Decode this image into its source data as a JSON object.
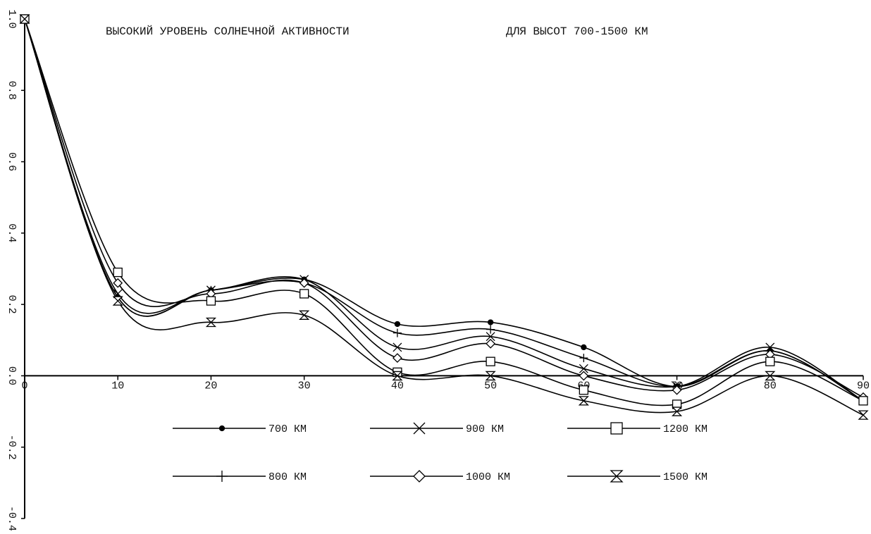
{
  "chart_data": {
    "type": "line",
    "title": "ВЫСОКИЙ УРОВЕНЬ СОЛНЕЧНОЙ АКТИВНОСТИ",
    "subtitle": "ДЛЯ ВЫСОТ 700-1500 КМ",
    "x": [
      0,
      10,
      20,
      30,
      40,
      50,
      60,
      70,
      80,
      90
    ],
    "series": [
      {
        "name": "700 КМ",
        "marker": "dot",
        "color": "#000000",
        "values": [
          1.0,
          0.22,
          0.24,
          0.27,
          0.145,
          0.15,
          0.08,
          -0.03,
          0.07,
          -0.07
        ]
      },
      {
        "name": "800 КМ",
        "marker": "plus",
        "color": "#000000",
        "values": [
          1.0,
          0.22,
          0.24,
          0.26,
          0.12,
          0.13,
          0.05,
          -0.03,
          0.07,
          -0.07
        ]
      },
      {
        "name": "900 КМ",
        "marker": "cross",
        "color": "#000000",
        "values": [
          1.0,
          0.23,
          0.24,
          0.27,
          0.08,
          0.11,
          0.02,
          -0.03,
          0.08,
          -0.07
        ]
      },
      {
        "name": "1000 КМ",
        "marker": "diamond",
        "color": "#000000",
        "values": [
          1.0,
          0.26,
          0.23,
          0.26,
          0.05,
          0.09,
          0.0,
          -0.04,
          0.06,
          -0.06
        ]
      },
      {
        "name": "1200 КМ",
        "marker": "square",
        "color": "#000000",
        "values": [
          1.0,
          0.29,
          0.21,
          0.23,
          0.01,
          0.04,
          -0.04,
          -0.08,
          0.04,
          -0.07
        ]
      },
      {
        "name": "1500 КМ",
        "marker": "hourglass",
        "color": "#000000",
        "values": [
          1.0,
          0.21,
          0.15,
          0.17,
          0.0,
          0.0,
          -0.07,
          -0.1,
          0.0,
          -0.11
        ]
      }
    ],
    "xlim": [
      0,
      90
    ],
    "xticks": [
      0,
      10,
      20,
      30,
      40,
      50,
      60,
      70,
      80,
      90
    ],
    "ylim": [
      -0.4,
      1.0
    ],
    "yticks": [
      {
        "value": -0.4,
        "label": "-0.4"
      },
      -0.2,
      {
        "value": 0,
        "label": "0.0"
      },
      0.2,
      0.4,
      0.6,
      0.8,
      {
        "value": 1,
        "label": "1.0"
      }
    ],
    "legend": "lower center",
    "grid": false
  }
}
